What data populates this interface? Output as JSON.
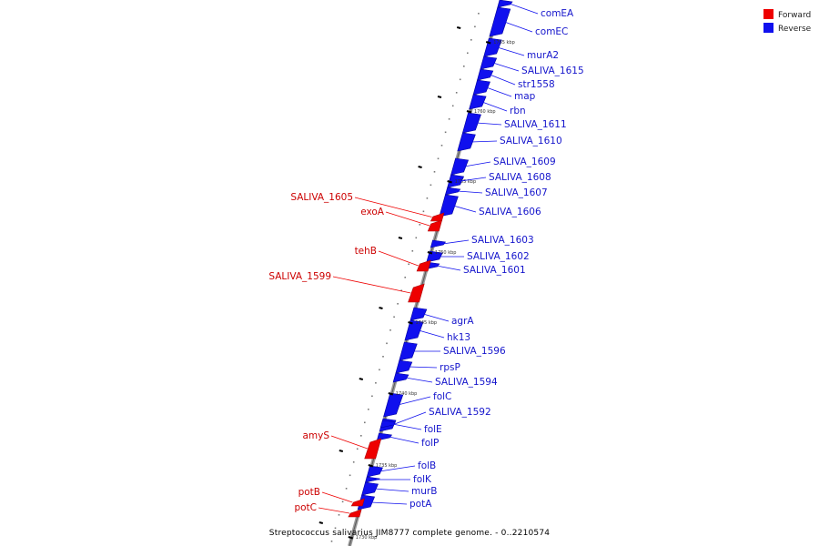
{
  "legend": [
    {
      "label": "Forward",
      "color": "#ee0000"
    },
    {
      "label": "Reverse",
      "color": "#1010ee"
    }
  ],
  "caption": "Streptococcus salivarius JIM8777 complete genome. - 0..2210574",
  "colors": {
    "forward": "#ee0000",
    "reverse": "#1010ee",
    "backbone": "#808080"
  },
  "genes": [
    {
      "label": "comEA",
      "strand": "reverse"
    },
    {
      "label": "comEC",
      "strand": "reverse"
    },
    {
      "label": "murA2",
      "strand": "reverse"
    },
    {
      "label": "SALIVA_1615",
      "strand": "reverse"
    },
    {
      "label": "str1558",
      "strand": "reverse"
    },
    {
      "label": "map",
      "strand": "reverse"
    },
    {
      "label": "rbn",
      "strand": "reverse"
    },
    {
      "label": "SALIVA_1611",
      "strand": "reverse"
    },
    {
      "label": "SALIVA_1610",
      "strand": "reverse"
    },
    {
      "label": "SALIVA_1609",
      "strand": "reverse"
    },
    {
      "label": "SALIVA_1608",
      "strand": "reverse"
    },
    {
      "label": "SALIVA_1607",
      "strand": "reverse"
    },
    {
      "label": "SALIVA_1606",
      "strand": "reverse"
    },
    {
      "label": "SALIVA_1605",
      "strand": "forward"
    },
    {
      "label": "exoA",
      "strand": "forward"
    },
    {
      "label": "SALIVA_1603",
      "strand": "reverse"
    },
    {
      "label": "SALIVA_1602",
      "strand": "reverse"
    },
    {
      "label": "SALIVA_1601",
      "strand": "reverse"
    },
    {
      "label": "tehB",
      "strand": "forward"
    },
    {
      "label": "SALIVA_1599",
      "strand": "forward"
    },
    {
      "label": "agrA",
      "strand": "reverse"
    },
    {
      "label": "hk13",
      "strand": "reverse"
    },
    {
      "label": "SALIVA_1596",
      "strand": "reverse"
    },
    {
      "label": "rpsP",
      "strand": "reverse"
    },
    {
      "label": "SALIVA_1594",
      "strand": "reverse"
    },
    {
      "label": "folC",
      "strand": "reverse"
    },
    {
      "label": "SALIVA_1592",
      "strand": "reverse"
    },
    {
      "label": "folE",
      "strand": "reverse"
    },
    {
      "label": "folP",
      "strand": "reverse"
    },
    {
      "label": "amyS",
      "strand": "forward"
    },
    {
      "label": "folB",
      "strand": "reverse"
    },
    {
      "label": "folK",
      "strand": "reverse"
    },
    {
      "label": "murB",
      "strand": "reverse"
    },
    {
      "label": "potA",
      "strand": "reverse"
    },
    {
      "label": "potB",
      "strand": "forward"
    },
    {
      "label": "potC",
      "strand": "forward"
    }
  ],
  "ticks": [
    "1765 kbp",
    "1760 kbp",
    "1755 kbp",
    "1750 kbp",
    "1745 kbp",
    "1740 kbp",
    "1735 kbp",
    "1730 kbp"
  ]
}
